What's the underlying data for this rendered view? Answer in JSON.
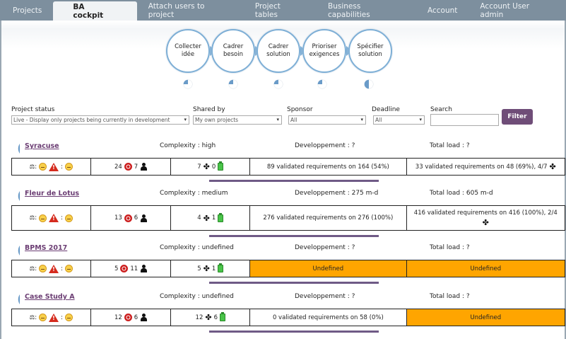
{
  "nav": {
    "tabs": [
      {
        "label": "Projects"
      },
      {
        "label": "BA cockpit"
      },
      {
        "label": "Attach users to project"
      },
      {
        "label": "Project tables"
      },
      {
        "label": "Business capabilities"
      },
      {
        "label": "Account"
      },
      {
        "label": "Account User admin"
      }
    ],
    "active_tab": "BA cockpit"
  },
  "process_steps": [
    {
      "line1": "Collecter",
      "line2": "idée",
      "progress": 0.25
    },
    {
      "line1": "Cadrer",
      "line2": "besoin",
      "progress": 0.25
    },
    {
      "line1": "Cadrer",
      "line2": "solution",
      "progress": 0.25
    },
    {
      "line1": "Prioriser",
      "line2": "exigences",
      "progress": 0.25
    },
    {
      "line1": "Spécifier",
      "line2": "solution",
      "progress": 0.5
    }
  ],
  "filters": {
    "project_status_label": "Project status",
    "project_status_value": "Live - Display only projects being currently in development",
    "shared_by_label": "Shared by",
    "shared_by_value": "My own projects",
    "sponsor_label": "Sponsor",
    "sponsor_value": "All",
    "deadline_label": "Deadline",
    "deadline_value": "All",
    "search_label": "Search",
    "search_value": "",
    "filter_button": "Filter"
  },
  "colors": {
    "accent": "#6f4d78",
    "nav_bg": "#7d8f9e",
    "undefined_cell": "#ffa500",
    "step_border": "#7eafd6"
  },
  "projects": [
    {
      "name": "Syracuse",
      "complexity": "Complexity : high",
      "development": "Developpement : ?",
      "total_load": "Total load : ?",
      "status_prefix": ":",
      "status_sep1": ":",
      "status_sep2": ":",
      "targets": "24",
      "people": "7",
      "puzzles": "7",
      "batteries": "0",
      "validated_dev": "89 validated requirements on 164 (54%)",
      "validated_total": "33 validated requirements on 48 (69%), 4/7",
      "dev_undefined": false,
      "total_undefined": false
    },
    {
      "name": "Fleur de Lotus",
      "complexity": "Complexity : medium",
      "development": "Developpement : 275 m-d",
      "total_load": "Total load : 605 m-d",
      "status_prefix": ":",
      "status_sep1": ":",
      "status_sep2": ":",
      "targets": "13",
      "people": "6",
      "puzzles": "4",
      "batteries": "1",
      "validated_dev": "276 validated requirements on 276 (100%)",
      "validated_total": "416 validated requirements on 416 (100%), 2/4",
      "dev_undefined": false,
      "total_undefined": false
    },
    {
      "name": "BPMS 2017",
      "complexity": "Complexity : undefined",
      "development": "Developpement : ?",
      "total_load": "Total load : ?",
      "status_prefix": ":",
      "status_sep1": ":",
      "status_sep2": ":",
      "targets": "5",
      "people": "11",
      "puzzles": "5",
      "batteries": "1",
      "validated_dev": "Undefined",
      "validated_total": "Undefined",
      "dev_undefined": true,
      "total_undefined": true
    },
    {
      "name": "Case Study A",
      "complexity": "Complexity : undefined",
      "development": "Developpement : ?",
      "total_load": "Total load : ?",
      "status_prefix": ":",
      "status_sep1": ":",
      "status_sep2": ":",
      "targets": "12",
      "people": "6",
      "puzzles": "12",
      "batteries": "6",
      "validated_dev": "0 validated requirements on 58 (0%)",
      "validated_total": "Undefined",
      "dev_undefined": false,
      "total_undefined": true
    }
  ]
}
